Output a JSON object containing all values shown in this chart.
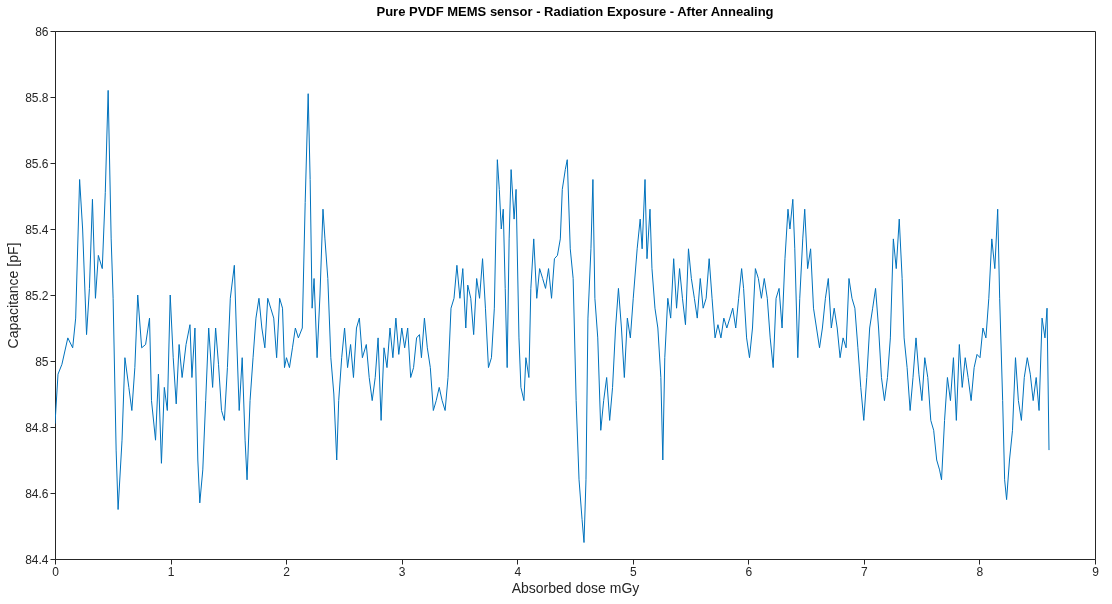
{
  "chart_data": {
    "type": "line",
    "title": "Pure PVDF MEMS sensor - Radiation Exposure - After Annealing",
    "xlabel": "Absorbed dose mGy",
    "ylabel": "Capacitance [pF]",
    "xlim": [
      0,
      9
    ],
    "xticks": [
      0,
      1,
      2,
      3,
      4,
      5,
      6,
      7,
      8,
      9
    ],
    "ylim": [
      84.4,
      86
    ],
    "yticks": [
      84.4,
      84.6,
      84.8,
      85,
      85.2,
      85.4,
      85.6,
      85.8,
      86
    ],
    "grid": false,
    "line_style": "solid",
    "series": [
      {
        "color": "#0072bd",
        "x": [
          0,
          0.026,
          0.06,
          0.111,
          0.153,
          0.179,
          0.213,
          0.239,
          0.273,
          0.298,
          0.324,
          0.35,
          0.375,
          0.409,
          0.435,
          0.46,
          0.486,
          0.503,
          0.529,
          0.546,
          0.58,
          0.605,
          0.639,
          0.665,
          0.691,
          0.716,
          0.75,
          0.784,
          0.818,
          0.835,
          0.87,
          0.895,
          0.921,
          0.946,
          0.972,
          0.997,
          1.023,
          1.049,
          1.074,
          1.1,
          1.134,
          1.168,
          1.185,
          1.211,
          1.236,
          1.253,
          1.279,
          1.304,
          1.33,
          1.364,
          1.39,
          1.415,
          1.441,
          1.466,
          1.492,
          1.517,
          1.552,
          1.569,
          1.594,
          1.62,
          1.645,
          1.662,
          1.688,
          1.714,
          1.739,
          1.765,
          1.79,
          1.816,
          1.841,
          1.867,
          1.893,
          1.918,
          1.944,
          1.969,
          1.986,
          2.003,
          2.029,
          2.055,
          2.08,
          2.106,
          2.14,
          2.165,
          2.191,
          2.208,
          2.225,
          2.242,
          2.268,
          2.293,
          2.319,
          2.336,
          2.361,
          2.387,
          2.413,
          2.438,
          2.455,
          2.481,
          2.506,
          2.532,
          2.558,
          2.583,
          2.609,
          2.634,
          2.66,
          2.694,
          2.719,
          2.745,
          2.771,
          2.796,
          2.822,
          2.847,
          2.873,
          2.899,
          2.924,
          2.95,
          2.975,
          3.001,
          3.026,
          3.052,
          3.078,
          3.103,
          3.129,
          3.154,
          3.171,
          3.197,
          3.222,
          3.248,
          3.274,
          3.299,
          3.325,
          3.35,
          3.376,
          3.401,
          3.427,
          3.453,
          3.478,
          3.504,
          3.529,
          3.555,
          3.572,
          3.598,
          3.623,
          3.649,
          3.674,
          3.7,
          3.725,
          3.751,
          3.777,
          3.802,
          3.828,
          3.845,
          3.862,
          3.879,
          3.896,
          3.913,
          3.93,
          3.947,
          3.973,
          3.99,
          4.015,
          4.032,
          4.058,
          4.075,
          4.101,
          4.118,
          4.143,
          4.169,
          4.194,
          4.22,
          4.245,
          4.271,
          4.297,
          4.322,
          4.348,
          4.373,
          4.39,
          4.416,
          4.433,
          4.459,
          4.484,
          4.51,
          4.535,
          4.561,
          4.578,
          4.595,
          4.612,
          4.638,
          4.655,
          4.672,
          4.697,
          4.723,
          4.748,
          4.774,
          4.8,
          4.825,
          4.851,
          4.876,
          4.902,
          4.927,
          4.953,
          4.979,
          5.004,
          5.038,
          5.064,
          5.081,
          5.106,
          5.123,
          5.149,
          5.166,
          5.192,
          5.217,
          5.243,
          5.26,
          5.277,
          5.303,
          5.328,
          5.354,
          5.379,
          5.405,
          5.43,
          5.456,
          5.482,
          5.507,
          5.533,
          5.558,
          5.584,
          5.609,
          5.635,
          5.661,
          5.686,
          5.712,
          5.737,
          5.763,
          5.788,
          5.814,
          5.84,
          5.865,
          5.891,
          5.916,
          5.942,
          5.959,
          5.985,
          6.01,
          6.036,
          6.061,
          6.087,
          6.113,
          6.138,
          6.164,
          6.189,
          6.215,
          6.24,
          6.266,
          6.292,
          6.317,
          6.343,
          6.36,
          6.385,
          6.402,
          6.428,
          6.445,
          6.471,
          6.488,
          6.513,
          6.539,
          6.564,
          6.59,
          6.616,
          6.641,
          6.667,
          6.692,
          6.718,
          6.743,
          6.769,
          6.794,
          6.82,
          6.846,
          6.871,
          6.897,
          6.922,
          6.948,
          6.973,
          6.999,
          7.025,
          7.05,
          7.076,
          7.101,
          7.127,
          7.152,
          7.178,
          7.204,
          7.229,
          7.255,
          7.28,
          7.306,
          7.331,
          7.348,
          7.374,
          7.4,
          7.425,
          7.451,
          7.476,
          7.502,
          7.527,
          7.553,
          7.579,
          7.604,
          7.63,
          7.655,
          7.672,
          7.698,
          7.723,
          7.749,
          7.775,
          7.8,
          7.826,
          7.851,
          7.877,
          7.902,
          7.928,
          7.954,
          7.979,
          8.005,
          8.03,
          8.056,
          8.081,
          8.107,
          8.133,
          8.158,
          8.175,
          8.201,
          8.218,
          8.235,
          8.26,
          8.286,
          8.312,
          8.337,
          8.363,
          8.388,
          8.414,
          8.44,
          8.465,
          8.491,
          8.516,
          8.542,
          8.567,
          8.585,
          8.602
        ],
        "values": [
          84.81,
          84.96,
          84.99,
          85.07,
          85.04,
          85.13,
          85.55,
          85.4,
          85.08,
          85.22,
          85.49,
          85.19,
          85.32,
          85.28,
          85.51,
          85.82,
          85.37,
          85.19,
          84.73,
          84.55,
          84.76,
          85.01,
          84.92,
          84.85,
          84.98,
          85.2,
          85.04,
          85.05,
          85.13,
          84.88,
          84.76,
          84.96,
          84.69,
          84.92,
          84.85,
          85.2,
          85.01,
          84.87,
          85.05,
          84.95,
          85.05,
          85.11,
          84.95,
          85.1,
          84.7,
          84.57,
          84.67,
          84.88,
          85.1,
          84.92,
          85.1,
          84.99,
          84.85,
          84.82,
          84.98,
          85.19,
          85.29,
          85.1,
          84.85,
          85.01,
          84.76,
          84.64,
          84.88,
          85.01,
          85.13,
          85.19,
          85.1,
          85.04,
          85.19,
          85.16,
          85.13,
          85.01,
          85.19,
          85.16,
          84.98,
          85.01,
          84.98,
          85.04,
          85.1,
          85.07,
          85.1,
          85.48,
          85.81,
          85.55,
          85.16,
          85.25,
          85.01,
          85.2,
          85.46,
          85.37,
          85.25,
          85.01,
          84.9,
          84.7,
          84.88,
          85.01,
          85.1,
          84.98,
          85.05,
          84.95,
          85.1,
          85.13,
          85.01,
          85.05,
          84.95,
          84.88,
          84.95,
          85.07,
          84.82,
          85.04,
          84.98,
          85.1,
          85.01,
          85.13,
          85.02,
          85.1,
          85.04,
          85.1,
          84.95,
          84.98,
          85.07,
          85.08,
          85.01,
          85.13,
          85.04,
          84.98,
          84.85,
          84.88,
          84.92,
          84.88,
          84.85,
          84.95,
          85.16,
          85.19,
          85.29,
          85.19,
          85.28,
          85.1,
          85.23,
          85.19,
          85.08,
          85.25,
          85.19,
          85.31,
          85.16,
          84.98,
          85.01,
          85.16,
          85.61,
          85.52,
          85.4,
          85.46,
          85.22,
          84.98,
          85.37,
          85.58,
          85.43,
          85.52,
          85.07,
          84.92,
          84.88,
          85.01,
          84.95,
          85.22,
          85.37,
          85.19,
          85.28,
          85.25,
          85.22,
          85.28,
          85.19,
          85.31,
          85.32,
          85.37,
          85.52,
          85.58,
          85.61,
          85.34,
          85.25,
          84.88,
          84.64,
          84.52,
          84.45,
          84.64,
          85.13,
          85.34,
          85.55,
          85.19,
          85.07,
          84.79,
          84.88,
          84.95,
          84.82,
          84.92,
          85.1,
          85.22,
          85.1,
          84.95,
          85.13,
          85.07,
          85.19,
          85.34,
          85.43,
          85.34,
          85.55,
          85.31,
          85.46,
          85.28,
          85.16,
          85.1,
          84.95,
          84.7,
          85.01,
          85.19,
          85.13,
          85.31,
          85.16,
          85.28,
          85.19,
          85.11,
          85.34,
          85.25,
          85.19,
          85.13,
          85.25,
          85.16,
          85.19,
          85.31,
          85.19,
          85.07,
          85.11,
          85.07,
          85.13,
          85.1,
          85.13,
          85.16,
          85.1,
          85.19,
          85.28,
          85.22,
          85.07,
          85.01,
          85.1,
          85.28,
          85.25,
          85.19,
          85.25,
          85.19,
          85.07,
          84.98,
          85.19,
          85.22,
          85.1,
          85.31,
          85.46,
          85.4,
          85.49,
          85.34,
          85.01,
          85.19,
          85.37,
          85.46,
          85.28,
          85.34,
          85.16,
          85.1,
          85.04,
          85.1,
          85.19,
          85.25,
          85.1,
          85.16,
          85.1,
          85.01,
          85.07,
          85.04,
          85.25,
          85.19,
          85.16,
          85.04,
          84.92,
          84.82,
          84.95,
          85.1,
          85.16,
          85.22,
          85.1,
          84.95,
          84.88,
          84.95,
          85.07,
          85.37,
          85.28,
          85.43,
          85.25,
          85.07,
          84.98,
          84.85,
          84.95,
          85.07,
          84.96,
          84.88,
          85.01,
          84.95,
          84.82,
          84.79,
          84.7,
          84.67,
          84.64,
          84.82,
          84.95,
          84.88,
          85.01,
          84.82,
          85.05,
          84.92,
          85.01,
          84.95,
          84.88,
          84.98,
          85.02,
          85.01,
          85.1,
          85.07,
          85.19,
          85.37,
          85.28,
          85.46,
          85.19,
          84.88,
          84.64,
          84.58,
          84.7,
          84.79,
          85.01,
          84.88,
          84.82,
          84.95,
          85.01,
          84.96,
          84.88,
          84.95,
          84.85,
          85.13,
          85.07,
          85.16,
          84.73
        ]
      }
    ]
  }
}
